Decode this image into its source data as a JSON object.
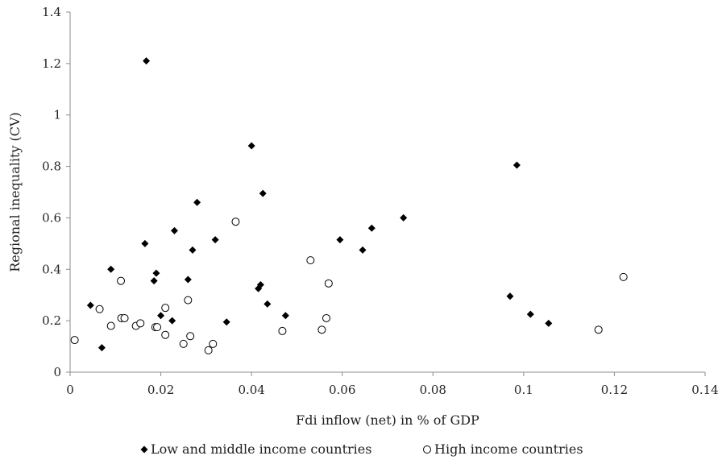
{
  "chart_data": {
    "type": "scatter",
    "title": "",
    "xlabel": "Fdi inflow (net) in % of GDP",
    "ylabel": "Regional inequality (CV)",
    "xlim": [
      0,
      0.14
    ],
    "ylim": [
      0,
      1.4
    ],
    "x_ticks": [
      "0",
      "0.02",
      "0.04",
      "0.06",
      "0.08",
      "0.1",
      "0.12",
      "0.14"
    ],
    "y_ticks": [
      "0",
      "0.2",
      "0.4",
      "0.6",
      "0.8",
      "1",
      "1.2",
      "1.4"
    ],
    "grid": false,
    "legend_position": "bottom",
    "series": [
      {
        "name": "Low and middle income countries",
        "marker": "diamond-filled",
        "color": "#000000",
        "points": [
          {
            "x": 0.0045,
            "y": 0.26
          },
          {
            "x": 0.007,
            "y": 0.095
          },
          {
            "x": 0.009,
            "y": 0.4
          },
          {
            "x": 0.0165,
            "y": 0.5
          },
          {
            "x": 0.0168,
            "y": 1.21
          },
          {
            "x": 0.0185,
            "y": 0.355
          },
          {
            "x": 0.019,
            "y": 0.385
          },
          {
            "x": 0.02,
            "y": 0.22
          },
          {
            "x": 0.0225,
            "y": 0.2
          },
          {
            "x": 0.023,
            "y": 0.55
          },
          {
            "x": 0.026,
            "y": 0.36
          },
          {
            "x": 0.027,
            "y": 0.475
          },
          {
            "x": 0.028,
            "y": 0.66
          },
          {
            "x": 0.032,
            "y": 0.515
          },
          {
            "x": 0.0345,
            "y": 0.195
          },
          {
            "x": 0.04,
            "y": 0.88
          },
          {
            "x": 0.0415,
            "y": 0.325
          },
          {
            "x": 0.042,
            "y": 0.34
          },
          {
            "x": 0.0425,
            "y": 0.695
          },
          {
            "x": 0.0435,
            "y": 0.265
          },
          {
            "x": 0.0475,
            "y": 0.22
          },
          {
            "x": 0.0595,
            "y": 0.515
          },
          {
            "x": 0.0645,
            "y": 0.475
          },
          {
            "x": 0.0665,
            "y": 0.56
          },
          {
            "x": 0.0735,
            "y": 0.6
          },
          {
            "x": 0.097,
            "y": 0.295
          },
          {
            "x": 0.0985,
            "y": 0.805
          },
          {
            "x": 0.1015,
            "y": 0.225
          },
          {
            "x": 0.1055,
            "y": 0.19
          }
        ]
      },
      {
        "name": "High income countries",
        "marker": "circle-open",
        "color": "#000000",
        "points": [
          {
            "x": 0.001,
            "y": 0.125
          },
          {
            "x": 0.0065,
            "y": 0.245
          },
          {
            "x": 0.009,
            "y": 0.18
          },
          {
            "x": 0.0112,
            "y": 0.355
          },
          {
            "x": 0.0113,
            "y": 0.21
          },
          {
            "x": 0.012,
            "y": 0.21
          },
          {
            "x": 0.0145,
            "y": 0.18
          },
          {
            "x": 0.0155,
            "y": 0.19
          },
          {
            "x": 0.0188,
            "y": 0.175
          },
          {
            "x": 0.0192,
            "y": 0.175
          },
          {
            "x": 0.021,
            "y": 0.145
          },
          {
            "x": 0.021,
            "y": 0.25
          },
          {
            "x": 0.025,
            "y": 0.11
          },
          {
            "x": 0.026,
            "y": 0.28
          },
          {
            "x": 0.0265,
            "y": 0.14
          },
          {
            "x": 0.0305,
            "y": 0.085
          },
          {
            "x": 0.0315,
            "y": 0.11
          },
          {
            "x": 0.0365,
            "y": 0.585
          },
          {
            "x": 0.0468,
            "y": 0.16
          },
          {
            "x": 0.053,
            "y": 0.435
          },
          {
            "x": 0.0555,
            "y": 0.165
          },
          {
            "x": 0.0565,
            "y": 0.21
          },
          {
            "x": 0.057,
            "y": 0.345
          },
          {
            "x": 0.1165,
            "y": 0.165
          },
          {
            "x": 0.122,
            "y": 0.37
          }
        ]
      }
    ]
  }
}
